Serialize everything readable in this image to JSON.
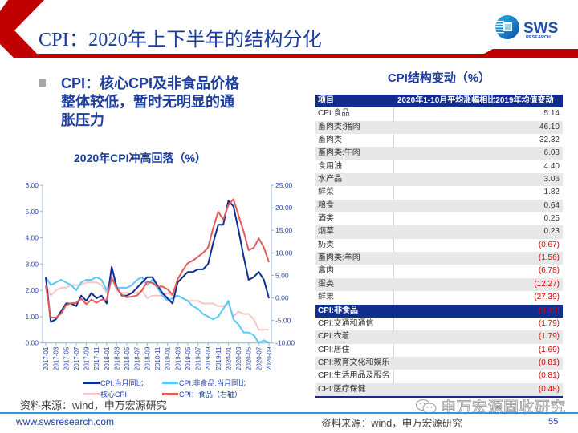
{
  "header": {
    "title": "CPI：2020年上下半年的结构分化",
    "logo": {
      "name": "SWS",
      "sub": "RESEARCH"
    },
    "brand_color": "#c00000"
  },
  "left_panel": {
    "bullet_lines": [
      "CPI：核心CPI及非食品价格",
      "整体较低，暂时无明显的通",
      "胀压力"
    ],
    "chart_title": "2020年CPI冲高回落（%）",
    "source": "资料来源：wind，申万宏源研究"
  },
  "right_panel": {
    "table_title": "CPI结构变动（%）",
    "table": {
      "columns": [
        "项目",
        "2020年1-10月平均涨幅相比2019年均值变动"
      ],
      "food_rows": [
        {
          "item": "CPI:食品",
          "value": "5.14"
        },
        {
          "item": "畜肉类:猪肉",
          "value": "46.10"
        },
        {
          "item": "畜肉类",
          "value": "32.32"
        },
        {
          "item": "畜肉类:牛肉",
          "value": "6.08"
        },
        {
          "item": "食用油",
          "value": "4.40"
        },
        {
          "item": "水产品",
          "value": "3.06"
        },
        {
          "item": "鲜菜",
          "value": "1.82"
        },
        {
          "item": "粮食",
          "value": "0.64"
        },
        {
          "item": "酒类",
          "value": "0.25"
        },
        {
          "item": "烟草",
          "value": "0.23"
        },
        {
          "item": "奶类",
          "value": "(0.67)"
        },
        {
          "item": "畜肉类:羊肉",
          "value": "(1.56)"
        },
        {
          "item": "禽肉",
          "value": "(6.78)"
        },
        {
          "item": "蛋类",
          "value": "(12.27)"
        },
        {
          "item": "鲜果",
          "value": "(27.39)"
        }
      ],
      "nonfood_header": {
        "item": "CPI:非食品",
        "value": "(0.89)"
      },
      "nonfood_rows": [
        {
          "item": "CPI:交通和通信",
          "value": "(1.79)"
        },
        {
          "item": "CPI:衣着",
          "value": "(1.79)"
        },
        {
          "item": "CPI:居住",
          "value": "(1.69)"
        },
        {
          "item": "CPI:教育文化和娱乐",
          "value": "(0.81)"
        },
        {
          "item": "CPI:生活用品及服务",
          "value": "(0.81)"
        },
        {
          "item": "CPI:医疗保健",
          "value": "(0.48)"
        }
      ],
      "negative_color": "#e00000",
      "header_color": "#112e8e"
    }
  },
  "watermark": "申万宏源固收研究",
  "footer": {
    "url": "www.swsresearch.com",
    "source": "资料来源：wind，申万宏源研究",
    "page": "55"
  },
  "chart_data": {
    "type": "line",
    "title": "2020年CPI冲高回落（%）",
    "xlabel": "",
    "ylabel": "",
    "x": [
      "2017-01",
      "2017-02",
      "2017-03",
      "2017-04",
      "2017-05",
      "2017-06",
      "2017-07",
      "2017-08",
      "2017-09",
      "2017-10",
      "2017-11",
      "2017-12",
      "2018-01",
      "2018-02",
      "2018-03",
      "2018-04",
      "2018-05",
      "2018-06",
      "2018-07",
      "2018-08",
      "2018-09",
      "2018-10",
      "2018-11",
      "2018-12",
      "2019-01",
      "2019-02",
      "2019-03",
      "2019-04",
      "2019-05",
      "2019-06",
      "2019-07",
      "2019-08",
      "2019-09",
      "2019-10",
      "2019-11",
      "2019-12",
      "2020-01",
      "2020-02",
      "2020-03",
      "2020-04",
      "2020-05",
      "2020-06",
      "2020-07",
      "2020-08",
      "2020-09"
    ],
    "x_tick_labels": [
      "2017-01",
      "2017-03",
      "2017-05",
      "2017-07",
      "2017-09",
      "2017-11",
      "2018-01",
      "2018-03",
      "2018-05",
      "2018-07",
      "2018-09",
      "2018-11",
      "2019-01",
      "2019-03",
      "2019-05",
      "2019-07",
      "2019-09",
      "2019-11",
      "2020-01",
      "2020-03",
      "2020-05",
      "2020-07",
      "2020-09"
    ],
    "y_left": {
      "range": [
        0,
        6
      ],
      "ticks": [
        0,
        1,
        2,
        3,
        4,
        5,
        6
      ]
    },
    "y_right": {
      "range": [
        -10,
        25
      ],
      "ticks": [
        -10,
        -5,
        0,
        5,
        10,
        15,
        20,
        25
      ]
    },
    "grid": false,
    "legend_position": "bottom",
    "series": [
      {
        "name": "CPI:当月同比",
        "axis": "left",
        "color": "#0d2f8f",
        "values": [
          2.5,
          0.8,
          0.9,
          1.2,
          1.5,
          1.5,
          1.4,
          1.8,
          1.6,
          1.9,
          1.7,
          1.8,
          1.5,
          2.9,
          2.1,
          1.8,
          1.8,
          1.9,
          2.1,
          2.3,
          2.5,
          2.5,
          2.2,
          1.9,
          1.7,
          1.5,
          2.3,
          2.5,
          2.7,
          2.7,
          2.8,
          2.8,
          3.0,
          3.8,
          4.5,
          4.5,
          5.4,
          5.2,
          4.3,
          3.3,
          2.4,
          2.5,
          2.7,
          2.4,
          1.7
        ]
      },
      {
        "name": "CPI:非食品:当月同比",
        "axis": "left",
        "color": "#5bc8f5",
        "values": [
          2.5,
          2.2,
          2.3,
          2.4,
          2.3,
          2.2,
          2.0,
          2.3,
          2.4,
          2.4,
          2.5,
          2.4,
          2.0,
          2.5,
          2.1,
          2.1,
          2.1,
          2.2,
          2.4,
          2.5,
          2.2,
          2.4,
          2.1,
          1.8,
          1.6,
          1.7,
          1.8,
          1.7,
          1.6,
          1.4,
          1.3,
          1.1,
          1.0,
          0.9,
          1.0,
          1.3,
          1.6,
          0.9,
          0.7,
          0.4,
          0.4,
          0.3,
          0.0,
          0.1,
          0.0
        ]
      },
      {
        "name": "核心CPI",
        "axis": "left",
        "color": "#f7c6c6",
        "values": [
          2.2,
          1.8,
          2.0,
          2.1,
          2.1,
          2.2,
          2.2,
          2.2,
          2.3,
          2.3,
          2.3,
          2.2,
          1.9,
          2.5,
          2.0,
          1.9,
          1.9,
          1.9,
          1.9,
          2.0,
          1.7,
          1.8,
          1.8,
          1.8,
          1.9,
          1.8,
          1.8,
          1.7,
          1.6,
          1.6,
          1.6,
          1.5,
          1.5,
          1.5,
          1.4,
          1.4,
          1.5,
          1.0,
          1.2,
          1.1,
          1.1,
          0.9,
          0.5,
          0.5,
          0.5
        ]
      },
      {
        "name": "CPI：食品（右轴）",
        "axis": "right",
        "color": "#e15b5b",
        "values": [
          2.7,
          -4.3,
          -4.4,
          -3.5,
          -1.6,
          -1.2,
          -1.1,
          -0.2,
          -1.4,
          -0.4,
          -1.1,
          -0.4,
          -0.5,
          4.4,
          2.1,
          0.7,
          0.1,
          0.3,
          0.5,
          1.7,
          3.6,
          3.3,
          2.5,
          2.5,
          1.9,
          0.7,
          4.1,
          6.1,
          7.7,
          8.3,
          9.1,
          10.0,
          11.2,
          15.5,
          19.1,
          17.4,
          20.6,
          21.9,
          18.3,
          14.8,
          10.6,
          11.1,
          13.2,
          11.2,
          7.9
        ]
      }
    ]
  }
}
